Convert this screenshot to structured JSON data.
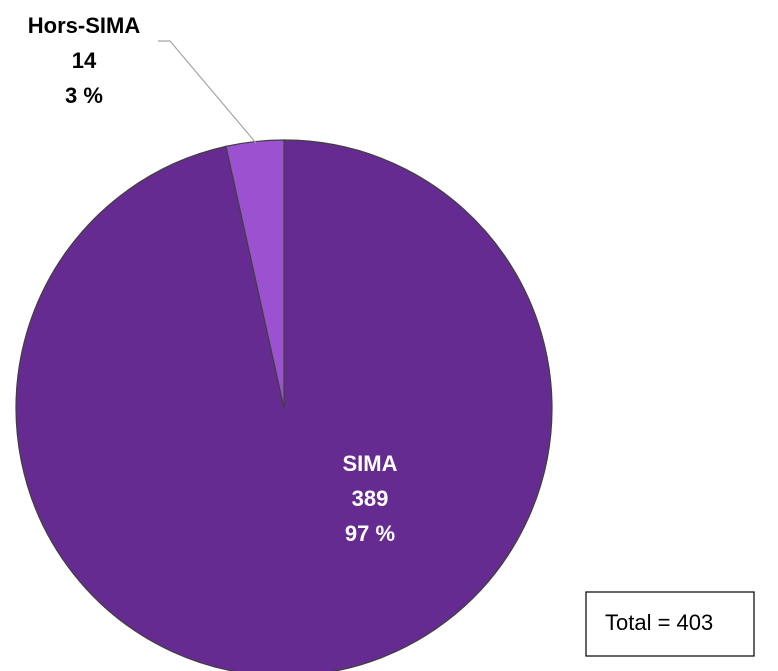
{
  "chart_data": {
    "type": "pie",
    "categories": [
      "SIMA",
      "Hors-SIMA"
    ],
    "values": [
      389,
      14
    ],
    "percent_labels": [
      "97 %",
      "3 %"
    ],
    "colors": [
      "#652b91",
      "#9b51d0"
    ],
    "annotation": "Total = 403"
  }
}
